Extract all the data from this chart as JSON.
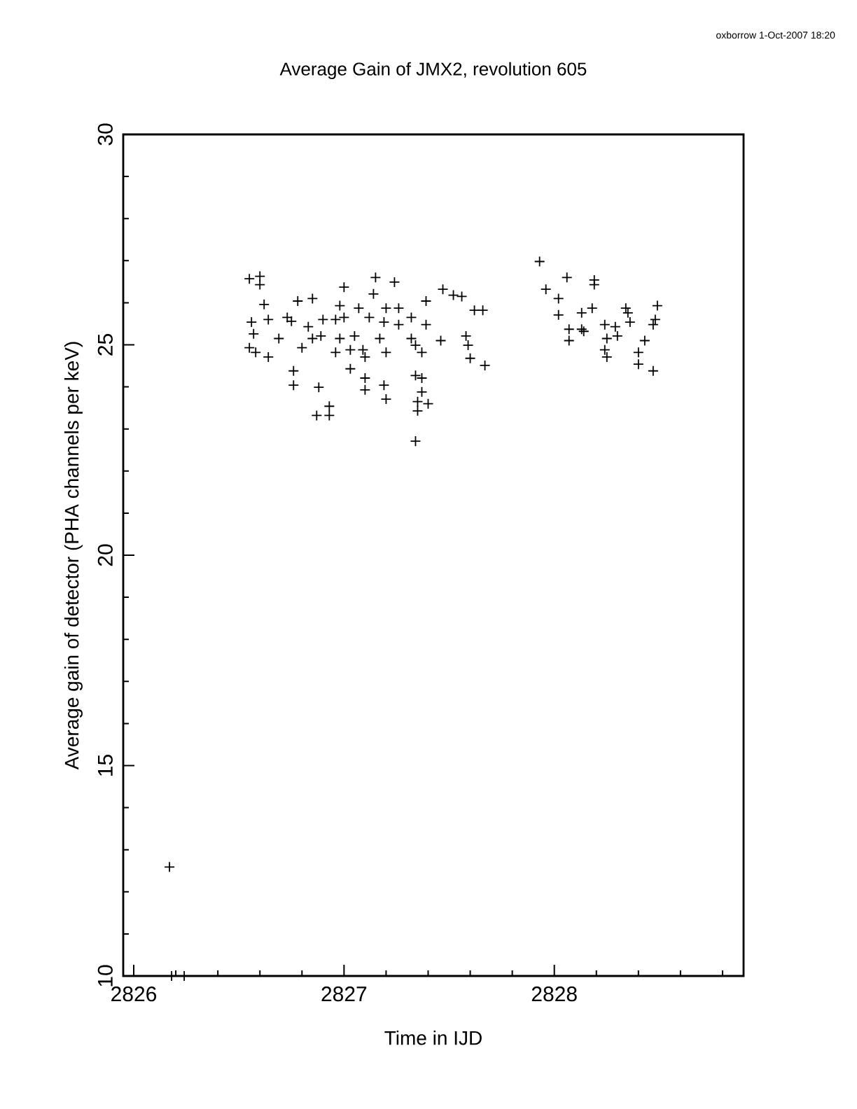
{
  "chart_data": {
    "type": "scatter",
    "title": "Average Gain of JMX2, revolution 605",
    "xlabel": "Time in IJD",
    "ylabel": "Average gain of detector (PHA channels per keV)",
    "annotations": [
      "oxborrow  1-Oct-2007 18:20"
    ],
    "marker": "cross",
    "color": "#000000",
    "x": [
      2826.55,
      2826.6,
      2826.6,
      2826.62,
      2826.56,
      2826.64,
      2826.55,
      2826.58,
      2826.64,
      2826.57,
      2826.69,
      2826.78,
      2826.73,
      2826.75,
      2826.83,
      2826.85,
      2826.9,
      2826.96,
      2826.85,
      2826.89,
      2826.8,
      2826.96,
      2826.76,
      2826.76,
      2826.88,
      2826.93,
      2826.87,
      2826.93,
      2826.98,
      2827.05,
      2827.03,
      2826.98,
      2827.0,
      2827.0,
      2827.07,
      2827.09,
      2827.1,
      2827.03,
      2827.12,
      2827.14,
      2827.15,
      2827.24,
      2827.2,
      2827.19,
      2827.17,
      2827.2,
      2827.1,
      2827.1,
      2827.19,
      2827.2,
      2827.26,
      2827.26,
      2827.32,
      2827.32,
      2827.34,
      2827.37,
      2827.39,
      2827.39,
      2827.46,
      2827.47,
      2827.52,
      2827.56,
      2827.62,
      2827.66,
      2827.58,
      2827.59,
      2827.6,
      2827.67,
      2827.34,
      2827.37,
      2827.37,
      2827.4,
      2827.35,
      2827.35,
      2827.34,
      2827.93,
      2827.96,
      2828.02,
      2828.02,
      2828.06,
      2828.07,
      2828.07,
      2828.13,
      2828.13,
      2828.14,
      2828.19,
      2828.19,
      2828.18,
      2828.24,
      2828.25,
      2828.24,
      2828.25,
      2828.29,
      2828.3,
      2828.34,
      2828.35,
      2828.36,
      2828.43,
      2828.4,
      2828.4,
      2828.47,
      2828.49,
      2828.48,
      2828.47,
      2826.17,
      2826.18,
      2826.24
    ],
    "values": [
      26.57,
      26.63,
      26.43,
      25.96,
      25.54,
      25.6,
      24.93,
      24.82,
      24.71,
      25.26,
      25.15,
      26.04,
      25.65,
      25.56,
      25.43,
      26.1,
      25.6,
      25.6,
      25.15,
      25.21,
      24.93,
      24.82,
      24.38,
      24.04,
      23.99,
      23.54,
      23.32,
      23.32,
      25.15,
      25.21,
      24.88,
      25.93,
      26.37,
      25.65,
      25.87,
      24.88,
      24.71,
      24.43,
      25.65,
      26.21,
      26.6,
      26.49,
      25.87,
      25.54,
      25.15,
      24.82,
      24.21,
      23.93,
      24.04,
      23.71,
      25.87,
      25.48,
      25.65,
      25.15,
      24.99,
      24.82,
      26.04,
      25.48,
      25.1,
      26.32,
      26.18,
      26.15,
      25.82,
      25.82,
      25.21,
      24.99,
      24.68,
      24.51,
      24.27,
      24.21,
      23.88,
      23.6,
      23.65,
      23.43,
      22.71,
      26.98,
      26.32,
      26.1,
      25.71,
      26.6,
      25.37,
      25.1,
      25.76,
      25.37,
      25.32,
      26.54,
      26.43,
      25.87,
      25.48,
      25.15,
      24.88,
      24.71,
      25.43,
      25.21,
      25.87,
      25.76,
      25.54,
      25.1,
      24.82,
      24.54,
      24.38,
      25.93,
      25.6,
      25.48,
      12.59,
      10.0,
      10.0
    ],
    "xlim": [
      2825.95,
      2828.9
    ],
    "ylim": [
      10,
      30
    ],
    "xticks": [
      2826,
      {
        "value": 2826.2,
        "label": null
      },
      {
        "value": 2826.4,
        "label": null
      },
      {
        "value": 2826.6,
        "label": null
      },
      {
        "value": 2826.8,
        "label": null
      },
      2827,
      {
        "value": 2827.2,
        "label": null
      },
      {
        "value": 2827.4,
        "label": null
      },
      {
        "value": 2827.6,
        "label": null
      },
      {
        "value": 2827.8,
        "label": null
      },
      2828,
      {
        "value": 2828.2,
        "label": null
      },
      {
        "value": 2828.4,
        "label": null
      },
      {
        "value": 2828.6,
        "label": null
      },
      {
        "value": 2828.8,
        "label": null
      }
    ],
    "yticks": [
      10,
      {
        "value": 11,
        "label": null
      },
      {
        "value": 12,
        "label": null
      },
      {
        "value": 13,
        "label": null
      },
      {
        "value": 14,
        "label": null
      },
      15,
      {
        "value": 16,
        "label": null
      },
      {
        "value": 17,
        "label": null
      },
      {
        "value": 18,
        "label": null
      },
      {
        "value": 19,
        "label": null
      },
      20,
      {
        "value": 21,
        "label": null
      },
      {
        "value": 22,
        "label": null
      },
      {
        "value": 23,
        "label": null
      },
      {
        "value": 24,
        "label": null
      },
      25,
      {
        "value": 26,
        "label": null
      },
      {
        "value": 27,
        "label": null
      },
      {
        "value": 28,
        "label": null
      },
      {
        "value": 29,
        "label": null
      },
      30
    ]
  }
}
